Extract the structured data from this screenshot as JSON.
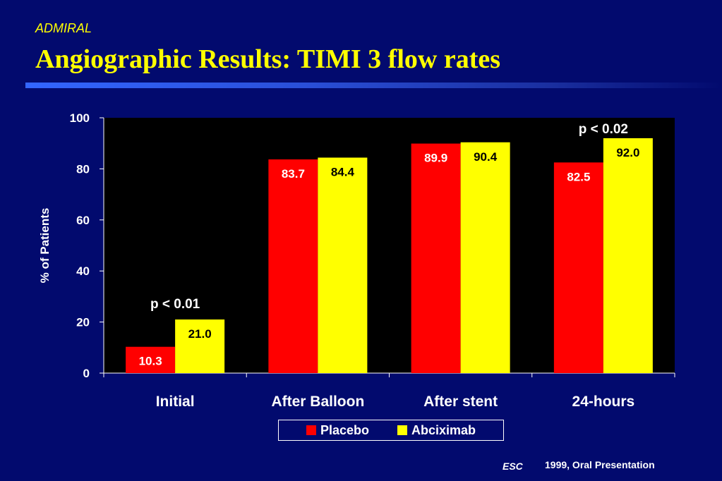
{
  "slide": {
    "subtitle": "ADMIRAL",
    "title": "Angiographic Results: TIMI 3 flow rates",
    "footer_esc": "ESC",
    "footer_source": "1999, Oral Presentation"
  },
  "colors": {
    "background": "#020a6e",
    "plot_background": "#000000",
    "placebo": "#ff0000",
    "abciximab": "#ffff00",
    "title": "#ffff00",
    "axis_text": "#ffffff"
  },
  "chart_data": {
    "type": "bar",
    "categories": [
      "Initial",
      "After Balloon",
      "After stent",
      "24-hours"
    ],
    "series": [
      {
        "name": "Placebo",
        "values": [
          10.3,
          83.7,
          89.9,
          82.5
        ],
        "labels": [
          "10.3",
          "83.7",
          "89.9",
          "82.5"
        ]
      },
      {
        "name": "Abciximab",
        "values": [
          21.0,
          84.4,
          90.4,
          92.0
        ],
        "labels": [
          "21.0",
          "84.4",
          "90.4",
          "92.0"
        ]
      }
    ],
    "xlabel": "",
    "ylabel": "% of Patients",
    "ylim": [
      0,
      100
    ],
    "yticks": [
      0,
      20,
      40,
      60,
      80,
      100
    ],
    "grid": false,
    "legend_position": "bottom",
    "annotations": [
      {
        "text": "p < 0.01",
        "category": "Initial"
      },
      {
        "text": "p < 0.02",
        "category": "24-hours"
      }
    ]
  }
}
